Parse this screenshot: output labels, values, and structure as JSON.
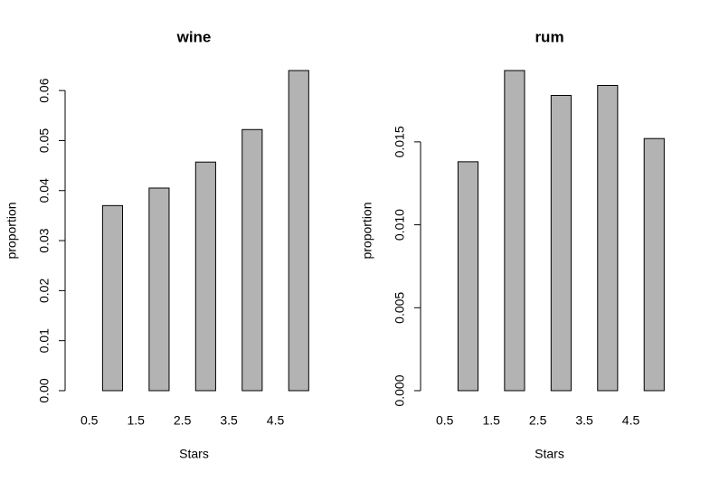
{
  "chart_data": [
    {
      "type": "bar",
      "title": "wine",
      "xlabel": "Stars",
      "ylabel": "proportion",
      "color": "#b3b3b3",
      "x": [
        0.5,
        1,
        2,
        3,
        4,
        5
      ],
      "values": [
        0,
        0.037,
        0.0405,
        0.0457,
        0.0522,
        0.064
      ],
      "xlim": [
        0,
        5.5
      ],
      "ylim": [
        0,
        0.064
      ],
      "xticks": [
        0.5,
        1.5,
        2.5,
        3.5,
        4.5
      ],
      "yticks": [
        {
          "value": 0,
          "label": "0.00"
        },
        {
          "value": 0.01,
          "label": "0.01"
        },
        {
          "value": 0.02,
          "label": "0.02"
        },
        {
          "value": 0.03,
          "label": "0.03"
        },
        {
          "value": 0.04,
          "label": "0.04"
        },
        {
          "value": 0.05,
          "label": "0.05"
        },
        {
          "value": 0.06,
          "label": "0.06"
        }
      ]
    },
    {
      "type": "bar",
      "title": "rum",
      "xlabel": "Stars",
      "ylabel": "proportion",
      "color": "#b3b3b3",
      "x": [
        0.5,
        1,
        2,
        3,
        4,
        5
      ],
      "values": [
        0,
        0.0138,
        0.0193,
        0.0178,
        0.0184,
        0.0152
      ],
      "xlim": [
        0,
        5.5
      ],
      "ylim": [
        0,
        0.0193
      ],
      "xticks": [
        0.5,
        1.5,
        2.5,
        3.5,
        4.5
      ],
      "yticks": [
        {
          "value": 0,
          "label": "0.000"
        },
        {
          "value": 0.005,
          "label": "0.005"
        },
        {
          "value": 0.01,
          "label": "0.010"
        },
        {
          "value": 0.015,
          "label": "0.015"
        }
      ]
    }
  ]
}
